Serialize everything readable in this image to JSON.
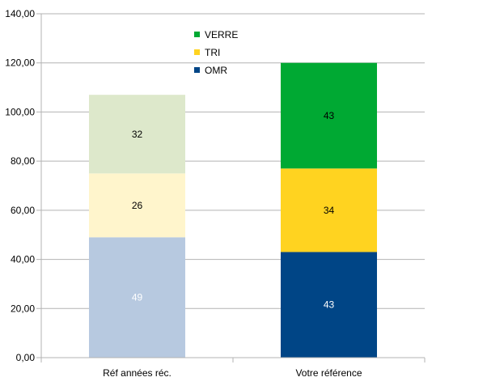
{
  "chart_data": {
    "type": "bar",
    "stacked": true,
    "categories": [
      "Réf années réc.",
      "Votre référence"
    ],
    "series": [
      {
        "name": "OMR",
        "values": [
          49,
          43
        ],
        "labels": [
          "49",
          "43"
        ],
        "colors": [
          "#b7c9e0",
          "#004586"
        ],
        "label_colors": [
          "#ffffff",
          "#ffffff"
        ]
      },
      {
        "name": "TRI",
        "values": [
          26,
          34
        ],
        "labels": [
          "26",
          "34"
        ],
        "colors": [
          "#fff5cc",
          "#ffd320"
        ],
        "label_colors": [
          "#000000",
          "#000000"
        ]
      },
      {
        "name": "VERRE",
        "values": [
          32,
          43
        ],
        "labels": [
          "32",
          "43"
        ],
        "colors": [
          "#dde8cb",
          "#00a933"
        ],
        "label_colors": [
          "#000000",
          "#000000"
        ]
      }
    ],
    "legend": {
      "position": "top-center",
      "order": [
        "VERRE",
        "TRI",
        "OMR"
      ],
      "colors": [
        "#00a933",
        "#ffd320",
        "#004586"
      ]
    },
    "ylim": [
      0,
      140
    ],
    "yticks": [
      "0,00",
      "20,00",
      "40,00",
      "60,00",
      "80,00",
      "100,00",
      "120,00",
      "140,00"
    ],
    "ytick_values": [
      0,
      20,
      40,
      60,
      80,
      100,
      120,
      140
    ],
    "grid": true,
    "title": "",
    "xlabel": "",
    "ylabel": ""
  }
}
